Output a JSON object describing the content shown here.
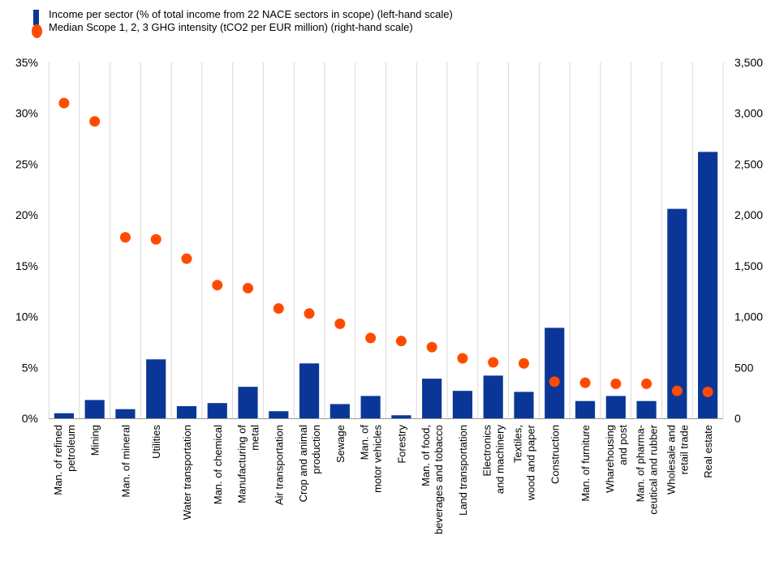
{
  "legend": {
    "bars_label": "Income per sector (% of total income from 22 NACE sectors in scope) (left-hand scale)",
    "dots_label": "Median Scope 1, 2, 3 GHG intensity (tCO2 per EUR million) (right-hand scale)"
  },
  "colors": {
    "bars": "#0a3797",
    "dots": "#ff4b00",
    "grid": "#d9d9d9"
  },
  "chart_data": {
    "type": "bar",
    "categories": [
      "Man. of refined petroleum",
      "Mining",
      "Man. of mineral",
      "Utilities",
      "Water transportation",
      "Man. of chemical",
      "Manufacturing of metal",
      "Air transportation",
      "Crop and animal production",
      "Sewage",
      "Man. of motor vehicles",
      "Forestry",
      "Man. of food, beverages and tobacco",
      "Land transportation",
      "Electronics and machinery",
      "Textiles, wood and paper",
      "Construction",
      "Man. of furniture",
      "Wharehousing and post",
      "Man. of pharma-ceutical and rubber",
      "Wholesale and retail trade",
      "Real estate"
    ],
    "category_lines": [
      [
        "Man. of refined",
        "petroleum"
      ],
      [
        "Mining"
      ],
      [
        "Man. of mineral"
      ],
      [
        "Utilities"
      ],
      [
        "Water transportation"
      ],
      [
        "Man. of chemical"
      ],
      [
        "Manufacturing of",
        "metal"
      ],
      [
        "Air transportation"
      ],
      [
        "Crop and animal",
        "production"
      ],
      [
        "Sewage"
      ],
      [
        "Man. of",
        "motor vehicles"
      ],
      [
        "Forestry"
      ],
      [
        "Man. of food,",
        "beverages and tobacco"
      ],
      [
        "Land transportation"
      ],
      [
        "Electronics",
        "and machinery"
      ],
      [
        "Textiles,",
        "wood and paper"
      ],
      [
        "Construction"
      ],
      [
        "Man. of furniture"
      ],
      [
        "Wharehousing",
        "and post"
      ],
      [
        "Man. of pharma-",
        "ceutical and rubber"
      ],
      [
        "Wholesale and",
        "retail trade"
      ],
      [
        "Real estate"
      ]
    ],
    "series": [
      {
        "name": "Income per sector (% of total income from 22 NACE sectors in scope) (left-hand scale)",
        "type": "bar",
        "axis": "left",
        "values": [
          0.5,
          1.8,
          0.9,
          5.8,
          1.2,
          1.5,
          3.1,
          0.7,
          5.4,
          1.4,
          2.2,
          0.3,
          3.9,
          2.7,
          4.2,
          2.6,
          8.9,
          1.7,
          2.2,
          1.7,
          20.6,
          26.2
        ]
      },
      {
        "name": "Median Scope 1, 2, 3 GHG intensity (tCO2 per EUR million) (right-hand scale)",
        "type": "scatter",
        "axis": "right",
        "values": [
          3100,
          2920,
          1780,
          1760,
          1570,
          1310,
          1280,
          1080,
          1030,
          930,
          790,
          760,
          700,
          590,
          550,
          540,
          360,
          350,
          340,
          340,
          270,
          260
        ]
      }
    ],
    "y_left": {
      "ylim": [
        0,
        35
      ],
      "ticks": [
        "0%",
        "5%",
        "10%",
        "15%",
        "20%",
        "25%",
        "30%",
        "35%"
      ]
    },
    "y_right": {
      "ylim": [
        0,
        3500
      ],
      "ticks": [
        "0",
        "500",
        "1,000",
        "1,500",
        "2,000",
        "2,500",
        "3,000",
        "3,500"
      ]
    },
    "grid": true,
    "legend_position": "top-left"
  }
}
